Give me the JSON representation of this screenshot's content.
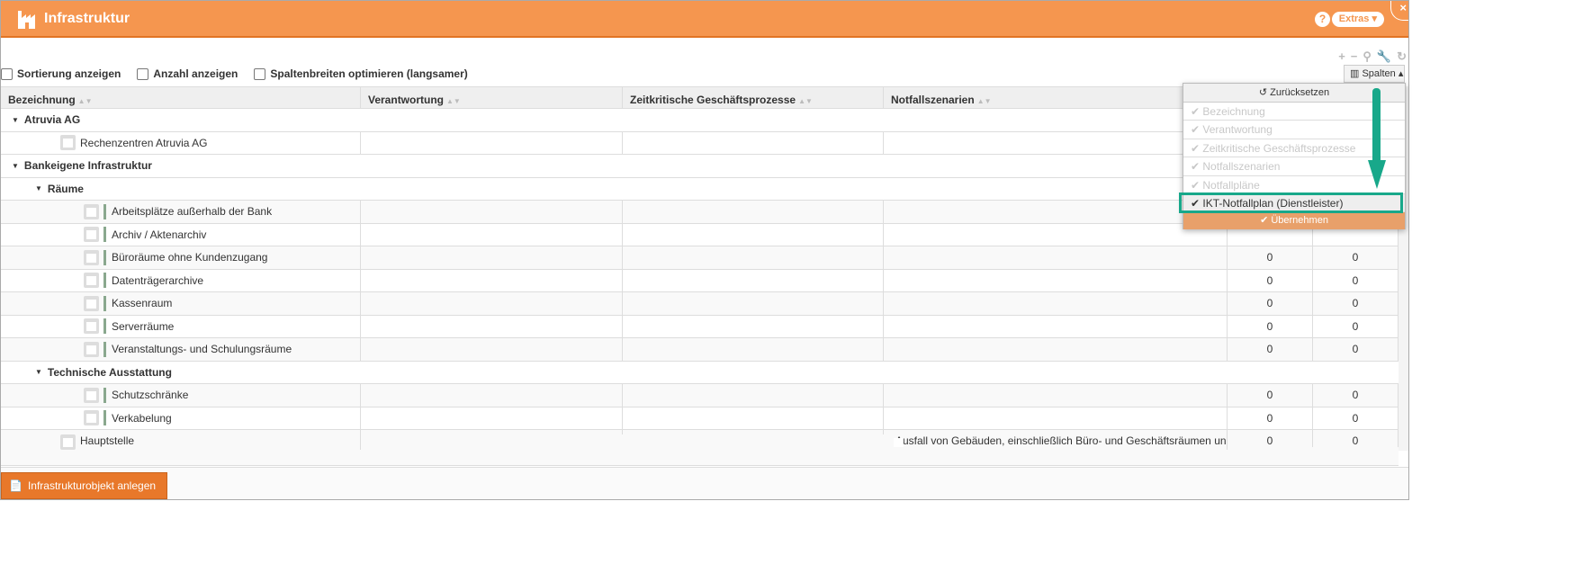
{
  "window": {
    "title": "Infrastruktur",
    "help": "?",
    "extras": "Extras ▾",
    "close": "×"
  },
  "toolbar": {
    "icons": [
      "plus-icon",
      "minus-icon",
      "search-icon",
      "wrench-icon",
      "refresh-icon"
    ],
    "spalten": "Spalten ▴"
  },
  "options": [
    "Sortierung anzeigen",
    "Anzahl anzeigen",
    "Spaltenbreiten optimieren (langsamer)"
  ],
  "columns": [
    "Bezeichnung",
    "Verantwortung",
    "Zeitkritische Geschäftsprozesse",
    "Notfallszenarien"
  ],
  "rows": [
    {
      "type": "group",
      "level": 0,
      "label": "Atruvia AG"
    },
    {
      "type": "item",
      "level": 1,
      "label": "Rechenzentren Atruvia AG",
      "v5": "",
      "v6": ""
    },
    {
      "type": "group",
      "level": 0,
      "label": "Bankeigene Infrastruktur"
    },
    {
      "type": "group",
      "level": 1,
      "label": "Räume"
    },
    {
      "type": "item",
      "level": 2,
      "label": "Arbeitsplätze außerhalb der Bank",
      "v5": "",
      "v6": ""
    },
    {
      "type": "item",
      "level": 2,
      "label": "Archiv / Aktenarchiv",
      "v5": "",
      "v6": ""
    },
    {
      "type": "item",
      "level": 2,
      "label": "Büroräume ohne Kundenzugang",
      "v5": "0",
      "v6": "0"
    },
    {
      "type": "item",
      "level": 2,
      "label": "Datenträgerarchive",
      "v5": "0",
      "v6": "0"
    },
    {
      "type": "item",
      "level": 2,
      "label": "Kassenraum",
      "v5": "0",
      "v6": "0"
    },
    {
      "type": "item",
      "level": 2,
      "label": "Serverräume",
      "v5": "0",
      "v6": "0"
    },
    {
      "type": "item",
      "level": 2,
      "label": "Veranstaltungs- und Schulungsräume",
      "v5": "0",
      "v6": "0"
    },
    {
      "type": "group",
      "level": 1,
      "label": "Technische Ausstattung"
    },
    {
      "type": "item",
      "level": 2,
      "label": "Schutzschränke",
      "v5": "0",
      "v6": "0"
    },
    {
      "type": "item",
      "level": 2,
      "label": "Verkabelung",
      "v5": "0",
      "v6": "0"
    },
    {
      "type": "item",
      "level": 1,
      "label": "Hauptstelle",
      "scenario": "Ausfall von Gebäuden, einschließlich Büro- und Geschäftsräumen und Rechenzentren",
      "v5": "0",
      "v6": "0"
    }
  ],
  "dropdown": {
    "reset": "Zurücksetzen",
    "items": [
      {
        "label": "Bezeichnung",
        "checked": true,
        "active": false
      },
      {
        "label": "Verantwortung",
        "checked": true,
        "active": false
      },
      {
        "label": "Zeitkritische Geschäftsprozesse",
        "checked": true,
        "active": false
      },
      {
        "label": "Notfallszenarien",
        "checked": true,
        "active": false
      },
      {
        "label": "Notfallpläne",
        "checked": true,
        "active": false
      },
      {
        "label": "IKT-Notfallplan (Dienstleister)",
        "checked": true,
        "active": true
      }
    ],
    "apply": "Übernehmen"
  },
  "footer": {
    "create": "Infrastrukturobjekt anlegen"
  },
  "colors": {
    "header": "#f5964f",
    "accent": "#e8782a",
    "highlight": "#18a88a"
  }
}
